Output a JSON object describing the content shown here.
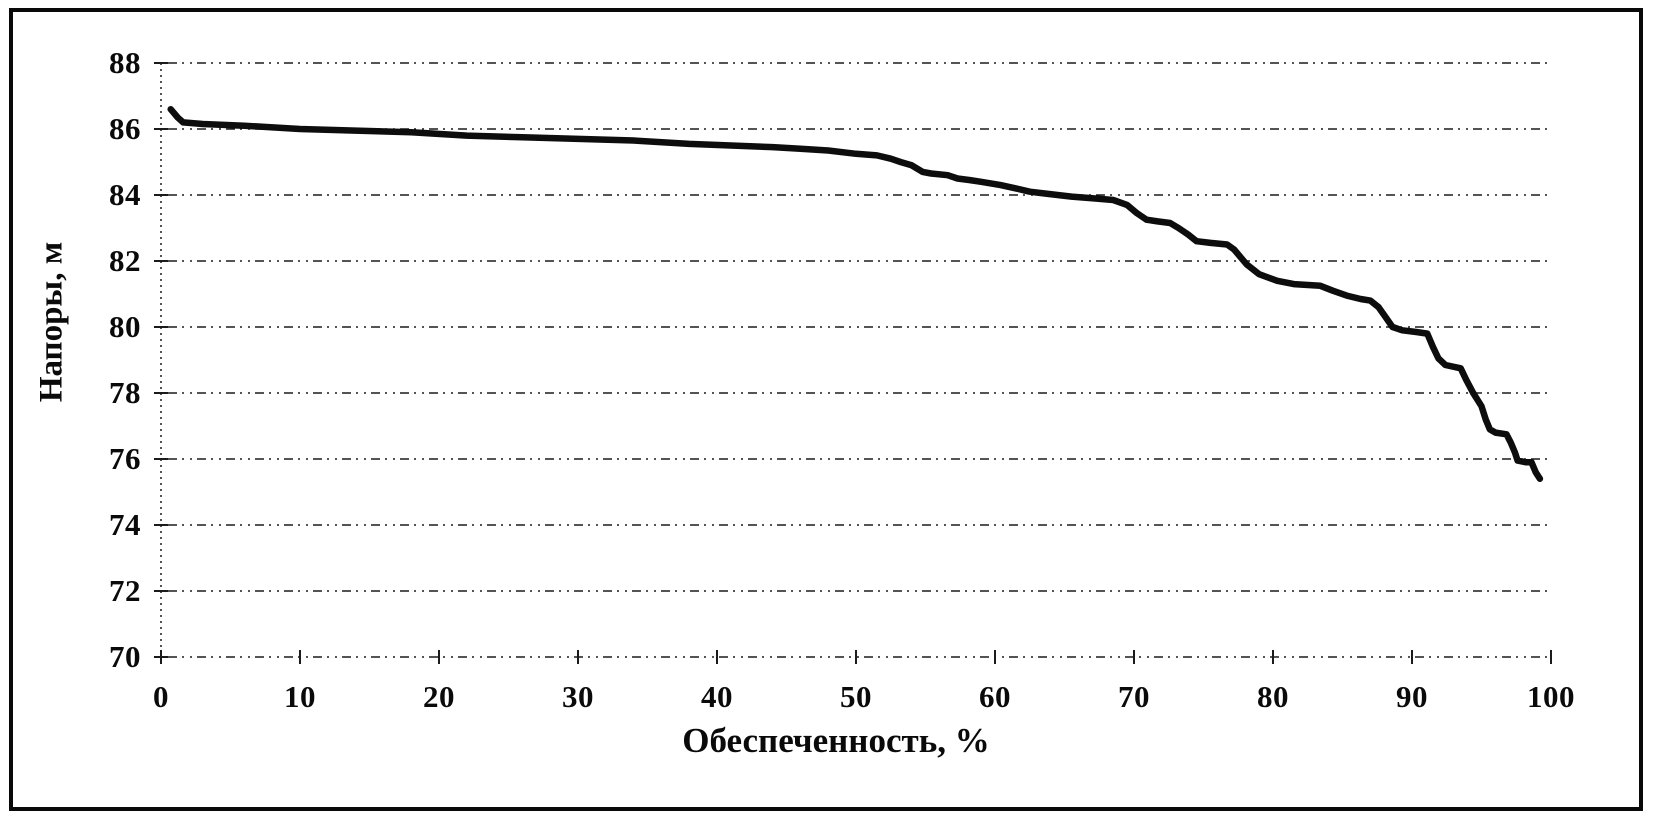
{
  "figure": {
    "background_color": "#ffffff",
    "frame_color": "#090909",
    "text_color": "#0a0a0a"
  },
  "chart_data": {
    "type": "line",
    "title": "",
    "xlabel": "Обеспеченность, %",
    "ylabel": "Напоры, м",
    "xlim": [
      0,
      100
    ],
    "ylim": [
      70,
      88
    ],
    "x_ticks": [
      0,
      10,
      20,
      30,
      40,
      50,
      60,
      70,
      80,
      90,
      100
    ],
    "y_ticks": [
      70,
      72,
      74,
      76,
      78,
      80,
      82,
      84,
      86,
      88
    ],
    "grid": "horizontal-dotted",
    "legend_position": "none",
    "series": [
      {
        "name": "head-duration-curve",
        "color": "#0d0d0d",
        "x": [
          0.7,
          1.2,
          1.6,
          3,
          6,
          10,
          14,
          18,
          22,
          26,
          30,
          34,
          38,
          41,
          44,
          46,
          48,
          50,
          51.5,
          52.5,
          53.2,
          54,
          54.8,
          55.4,
          56.6,
          57.3,
          58.2,
          59,
          60.4,
          61.5,
          62.5,
          63.5,
          64.5,
          65.5,
          67,
          68.5,
          69.5,
          70.2,
          70.9,
          71.7,
          72.6,
          73.2,
          73.9,
          74.5,
          75.5,
          76.7,
          77.2,
          77.7,
          78.1,
          79,
          80.3,
          81.5,
          83.4,
          84.3,
          85.3,
          86.3,
          87,
          87.6,
          88.1,
          88.6,
          89.3,
          90.3,
          91.1,
          91.5,
          91.9,
          92.4,
          93.5,
          93.9,
          94.4,
          95,
          95.3,
          95.6,
          96,
          96.8,
          97.1,
          97.4,
          97.6,
          98.2,
          98.6,
          98.9,
          99.2
        ],
        "y": [
          86.6,
          86.35,
          86.2,
          86.15,
          86.1,
          86.0,
          85.95,
          85.9,
          85.8,
          85.75,
          85.7,
          85.65,
          85.55,
          85.5,
          85.45,
          85.4,
          85.35,
          85.25,
          85.2,
          85.1,
          85.0,
          84.9,
          84.7,
          84.65,
          84.6,
          84.5,
          84.45,
          84.4,
          84.3,
          84.2,
          84.1,
          84.05,
          84.0,
          83.95,
          83.9,
          83.85,
          83.7,
          83.45,
          83.25,
          83.2,
          83.15,
          83.0,
          82.8,
          82.6,
          82.55,
          82.5,
          82.35,
          82.1,
          81.9,
          81.6,
          81.4,
          81.3,
          81.25,
          81.1,
          80.95,
          80.85,
          80.8,
          80.6,
          80.3,
          80.0,
          79.9,
          79.85,
          79.8,
          79.4,
          79.05,
          78.85,
          78.75,
          78.4,
          78.0,
          77.6,
          77.2,
          76.9,
          76.8,
          76.75,
          76.5,
          76.2,
          75.95,
          75.9,
          75.9,
          75.6,
          75.4
        ]
      }
    ]
  }
}
